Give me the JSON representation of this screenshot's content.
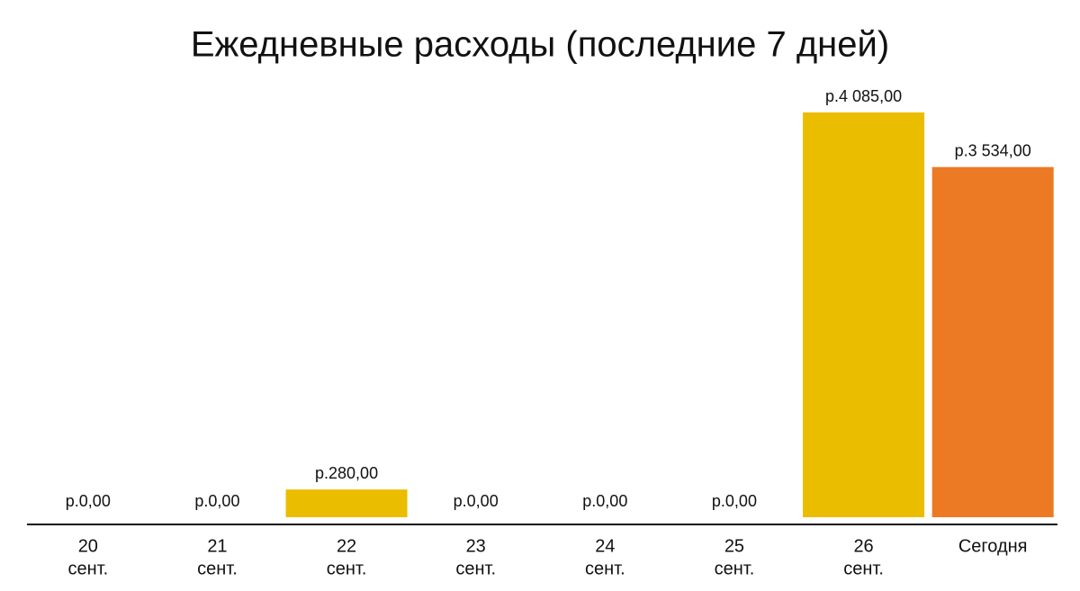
{
  "chart_data": {
    "type": "bar",
    "title": "Ежедневные расходы (последние 7 дней)",
    "categories": [
      [
        "20",
        "сент."
      ],
      [
        "21",
        "сент."
      ],
      [
        "22",
        "сент."
      ],
      [
        "23",
        "сент."
      ],
      [
        "24",
        "сент."
      ],
      [
        "25",
        "сент."
      ],
      [
        "26",
        "сент."
      ],
      [
        "Сегодня"
      ]
    ],
    "values": [
      0,
      0,
      280,
      0,
      0,
      0,
      4085,
      3534
    ],
    "value_labels": [
      "р.0,00",
      "р.0,00",
      "р.280,00",
      "р.0,00",
      "р.0,00",
      "р.0,00",
      "р.4 085,00",
      "р.3 534,00"
    ],
    "colors": [
      "#ebbd00",
      "#ebbd00",
      "#ebbd00",
      "#ebbd00",
      "#ebbd00",
      "#ebbd00",
      "#ebbd00",
      "#ec7a24"
    ]
  }
}
